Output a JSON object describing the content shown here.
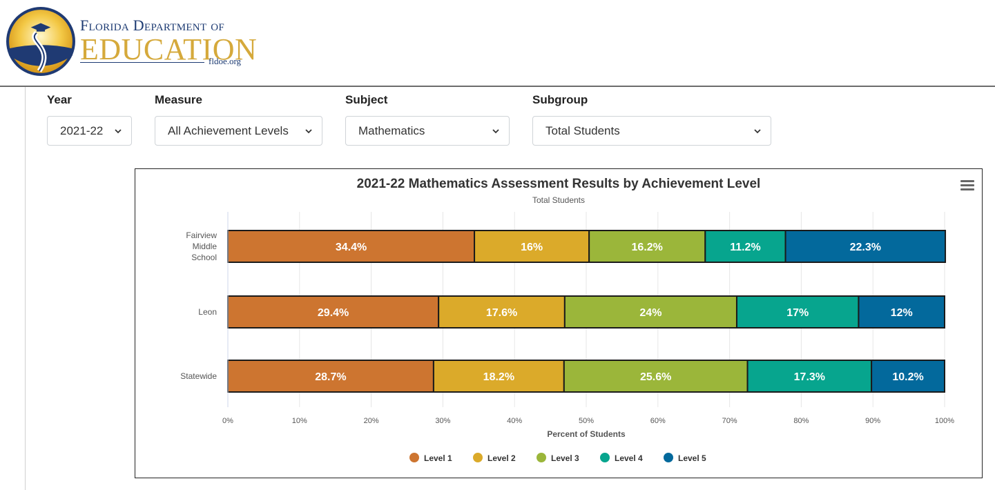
{
  "header": {
    "logo_line1": "Florida Department of",
    "logo_line2": "EDUCATION",
    "logo_url": "fldoe.org"
  },
  "filters": {
    "year": {
      "label": "Year",
      "value": "2021-22"
    },
    "measure": {
      "label": "Measure",
      "value": "All Achievement Levels"
    },
    "subject": {
      "label": "Subject",
      "value": "Mathematics"
    },
    "subgroup": {
      "label": "Subgroup",
      "value": "Total Students"
    }
  },
  "chart_data": {
    "type": "bar",
    "orientation": "horizontal",
    "stacked": true,
    "title": "2021-22 Mathematics Assessment Results by Achievement Level",
    "subtitle": "Total Students",
    "xlabel": "Percent of Students",
    "xlim": [
      0,
      100
    ],
    "xticks": [
      "0%",
      "10%",
      "20%",
      "30%",
      "40%",
      "50%",
      "60%",
      "70%",
      "80%",
      "90%",
      "100%"
    ],
    "categories": [
      [
        "Fairview",
        "Middle",
        "School"
      ],
      [
        "Leon"
      ],
      [
        "Statewide"
      ]
    ],
    "series": [
      {
        "name": "Level 1",
        "color": "#cd7530",
        "values": [
          34.4,
          29.4,
          28.7
        ],
        "labels": [
          "34.4%",
          "29.4%",
          "28.7%"
        ]
      },
      {
        "name": "Level 2",
        "color": "#dbaa2a",
        "values": [
          16,
          17.6,
          18.2
        ],
        "labels": [
          "16%",
          "17.6%",
          "18.2%"
        ]
      },
      {
        "name": "Level 3",
        "color": "#9bb63a",
        "values": [
          16.2,
          24,
          25.6
        ],
        "labels": [
          "16.2%",
          "24%",
          "25.6%"
        ]
      },
      {
        "name": "Level 4",
        "color": "#07a58e",
        "values": [
          11.2,
          17,
          17.3
        ],
        "labels": [
          "11.2%",
          "17%",
          "17.3%"
        ]
      },
      {
        "name": "Level 5",
        "color": "#03699c",
        "values": [
          22.3,
          12,
          10.2
        ],
        "labels": [
          "22.3%",
          "12%",
          "10.2%"
        ]
      }
    ],
    "grid": true,
    "legend_position": "bottom"
  }
}
